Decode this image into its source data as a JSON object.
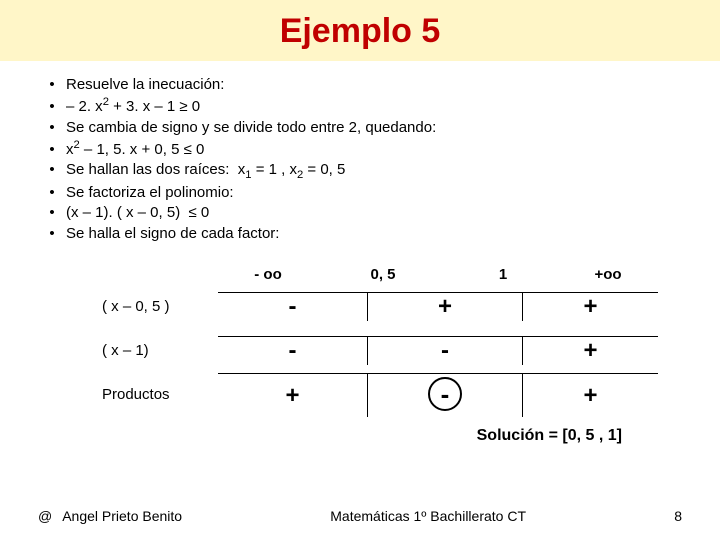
{
  "colors": {
    "header_bg": "#fff6c8",
    "title_color": "#c00000"
  },
  "title": "Ejemplo 5",
  "bullets": [
    {
      "html": "Resuelve la inecuación:"
    },
    {
      "html": "– 2. x<span class=\"sup\">2</span> + 3. x – 1 ≥ 0"
    },
    {
      "html": "Se cambia de signo y se divide todo entre 2, quedando:"
    },
    {
      "html": "x<span class=\"sup\">2</span> – 1, 5. x + 0, 5 ≤ 0"
    },
    {
      "html": "Se hallan las dos raíces:&nbsp;&nbsp;x<span class=\"sub\">1</span> = 1 , x<span class=\"sub\">2</span> = 0, 5"
    },
    {
      "html": "Se factoriza el polinomio:"
    },
    {
      "html": "(x – 1). ( x – 0, 5) &nbsp;≤ 0"
    },
    {
      "html": "Se halla el signo de cada factor:"
    }
  ],
  "axis": {
    "neg_inf": "- oo",
    "p1": "0, 5",
    "p2": "1",
    "pos_inf": "+oo"
  },
  "rows": [
    {
      "factor": "( x – 0, 5 )",
      "signs": [
        "-",
        "+",
        "+"
      ]
    },
    {
      "factor": "( x – 1)",
      "signs": [
        "-",
        "-",
        "+"
      ]
    }
  ],
  "product": {
    "label": "Productos",
    "signs": [
      "+",
      "-",
      "+"
    ],
    "circled_index": 1
  },
  "solution": "Solución = [0, 5 , 1]",
  "footer": {
    "author": "Angel Prieto Benito",
    "course": "Matemáticas 1º Bachillerato CT",
    "page": "8"
  }
}
